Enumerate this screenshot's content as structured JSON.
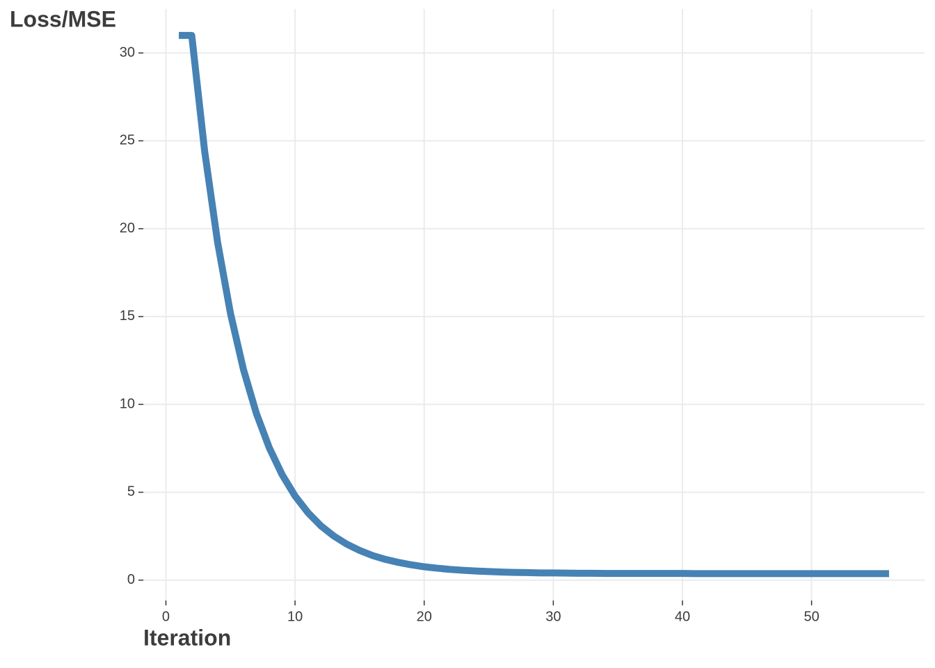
{
  "chart_data": {
    "type": "line",
    "x_label": "Iteration",
    "y_label": "Loss/MSE",
    "x": [
      1,
      2,
      3,
      4,
      5,
      6,
      7,
      8,
      9,
      10,
      11,
      12,
      13,
      14,
      15,
      16,
      17,
      18,
      19,
      20,
      21,
      22,
      23,
      24,
      25,
      26,
      27,
      28,
      29,
      30,
      31,
      32,
      33,
      34,
      35,
      36,
      37,
      38,
      39,
      40,
      41,
      42,
      43,
      44,
      45,
      46,
      47,
      48,
      49,
      50,
      51,
      52,
      53,
      54,
      55,
      56
    ],
    "series": [
      {
        "color": "#4682b4",
        "values": [
          31.0,
          31.0,
          24.41,
          19.24,
          15.18,
          12.0,
          9.5,
          7.54,
          6.0,
          4.79,
          3.84,
          3.09,
          2.51,
          2.05,
          1.69,
          1.4,
          1.18,
          1.01,
          0.87,
          0.76,
          0.68,
          0.61,
          0.56,
          0.52,
          0.49,
          0.46,
          0.44,
          0.43,
          0.41,
          0.41,
          0.4,
          0.39,
          0.39,
          0.38,
          0.38,
          0.38,
          0.38,
          0.38,
          0.38,
          0.38,
          0.37,
          0.37,
          0.37,
          0.37,
          0.37,
          0.37,
          0.37,
          0.37,
          0.37,
          0.37,
          0.37,
          0.37,
          0.37,
          0.37,
          0.37,
          0.37
        ]
      }
    ],
    "xlim": [
      -1.75,
      58.75
    ],
    "ylim": [
      -1.16,
      32.5
    ],
    "xticks": [
      0,
      10,
      20,
      30,
      40,
      50
    ],
    "yticks": [
      0,
      5,
      10,
      15,
      20,
      25,
      30
    ],
    "grid": true
  }
}
